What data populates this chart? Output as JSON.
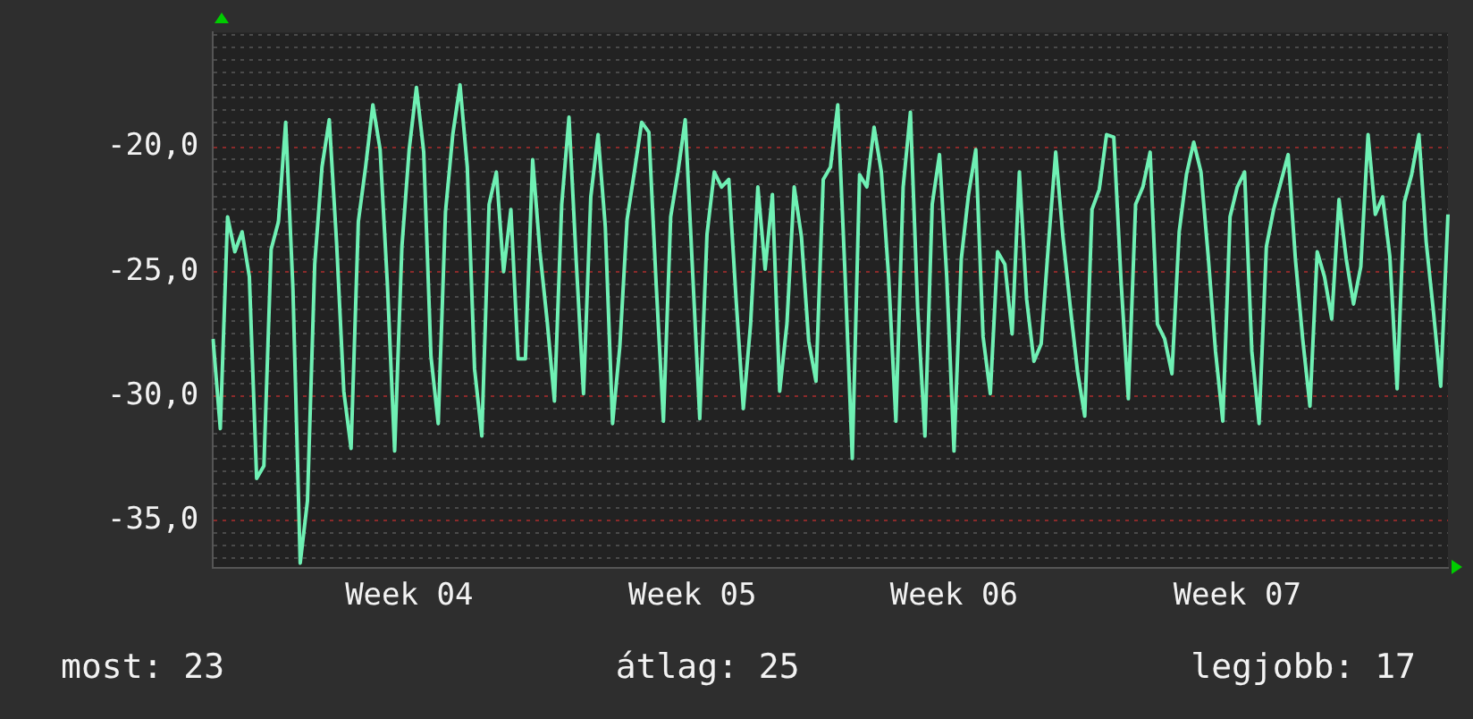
{
  "chart_data": {
    "type": "line",
    "ylim": [
      -36.9,
      -15.4
    ],
    "categories": [
      null,
      null,
      null,
      null,
      null,
      null,
      null,
      null,
      null,
      null,
      null,
      null,
      null,
      null,
      null,
      null,
      null,
      null,
      null,
      null,
      null,
      null,
      null,
      null,
      null,
      null,
      null,
      "Week 04",
      null,
      null,
      null,
      null,
      null,
      null,
      null,
      null,
      null,
      null,
      null,
      null,
      null,
      null,
      null,
      null,
      null,
      null,
      null,
      null,
      null,
      null,
      null,
      null,
      null,
      null,
      null,
      null,
      null,
      null,
      null,
      null,
      null,
      null,
      null,
      null,
      null,
      null,
      "Week 05",
      null,
      null,
      null,
      null,
      null,
      null,
      null,
      null,
      null,
      null,
      null,
      null,
      null,
      null,
      null,
      null,
      null,
      null,
      null,
      null,
      null,
      null,
      null,
      null,
      null,
      null,
      null,
      null,
      null,
      null,
      null,
      null,
      null,
      null,
      null,
      "Week 06",
      null,
      null,
      null,
      null,
      null,
      null,
      null,
      null,
      null,
      null,
      null,
      null,
      null,
      null,
      null,
      null,
      null,
      null,
      null,
      null,
      null,
      null,
      null,
      null,
      null,
      null,
      null,
      null,
      null,
      null,
      null,
      null,
      null,
      null,
      null,
      null,
      null,
      null,
      "Week 07",
      null,
      null,
      null,
      null,
      null,
      null,
      null,
      null,
      null,
      null,
      null,
      null,
      null,
      null,
      null,
      null,
      null,
      null,
      null,
      null,
      null,
      null,
      null,
      null,
      null,
      null,
      null,
      null,
      null
    ],
    "yticks": [
      {
        "value": -36.5,
        "label": null
      },
      {
        "value": -36,
        "label": null
      },
      {
        "value": -35.5,
        "label": null
      },
      {
        "value": -35,
        "label": "-35,0"
      },
      {
        "value": -34.5,
        "label": null
      },
      {
        "value": -34,
        "label": null
      },
      {
        "value": -33.5,
        "label": null
      },
      {
        "value": -33,
        "label": null
      },
      {
        "value": -32.5,
        "label": null
      },
      {
        "value": -32,
        "label": null
      },
      {
        "value": -31.5,
        "label": null
      },
      {
        "value": -31,
        "label": null
      },
      {
        "value": -30.5,
        "label": null
      },
      {
        "value": -30,
        "label": "-30,0"
      },
      {
        "value": -29.5,
        "label": null
      },
      {
        "value": -29,
        "label": null
      },
      {
        "value": -28.5,
        "label": null
      },
      {
        "value": -28,
        "label": null
      },
      {
        "value": -27.5,
        "label": null
      },
      {
        "value": -27,
        "label": null
      },
      {
        "value": -26.5,
        "label": null
      },
      {
        "value": -26,
        "label": null
      },
      {
        "value": -25.5,
        "label": null
      },
      {
        "value": -25,
        "label": "-25,0"
      },
      {
        "value": -24.5,
        "label": null
      },
      {
        "value": -24,
        "label": null
      },
      {
        "value": -23.5,
        "label": null
      },
      {
        "value": -23,
        "label": null
      },
      {
        "value": -22.5,
        "label": null
      },
      {
        "value": -22,
        "label": null
      },
      {
        "value": -21.5,
        "label": null
      },
      {
        "value": -21,
        "label": null
      },
      {
        "value": -20.5,
        "label": null
      },
      {
        "value": -20,
        "label": "-20,0"
      },
      {
        "value": -19.5,
        "label": null
      },
      {
        "value": -19,
        "label": null
      },
      {
        "value": -18.5,
        "label": null
      },
      {
        "value": -18,
        "label": null
      },
      {
        "value": -17.5,
        "label": null
      },
      {
        "value": -17,
        "label": null
      },
      {
        "value": -16.5,
        "label": null
      },
      {
        "value": -16,
        "label": null
      },
      {
        "value": -15.5,
        "label": null
      }
    ],
    "grid": "y",
    "marker": "none",
    "line_style": "solid",
    "annotations": [
      "most: 23",
      "átlag: 25",
      "legjobb: 17"
    ],
    "series": [
      {
        "color": "#6ff0b4",
        "values": [
          -27.7,
          -31.3,
          -22.8,
          -24.2,
          -23.4,
          -25.2,
          -33.3,
          -32.8,
          -24.1,
          -23.0,
          -19.0,
          -25.7,
          -36.7,
          -34.2,
          -24.7,
          -20.8,
          -18.9,
          -23.8,
          -29.8,
          -32.1,
          -23.0,
          -20.8,
          -18.3,
          -20.1,
          -25.5,
          -32.2,
          -24.0,
          -20.1,
          -17.6,
          -20.2,
          -28.4,
          -31.1,
          -22.6,
          -19.5,
          -17.5,
          -20.8,
          -28.9,
          -31.6,
          -22.3,
          -21.0,
          -25.0,
          -22.5,
          -28.5,
          -28.5,
          -20.5,
          -24.2,
          -27.0,
          -30.2,
          -22.3,
          -18.8,
          -24.6,
          -29.9,
          -22.0,
          -19.5,
          -23.2,
          -31.1,
          -28.0,
          -22.9,
          -21.0,
          -19.0,
          -19.4,
          -25.5,
          -31.0,
          -22.8,
          -21.0,
          -18.9,
          -24.9,
          -30.9,
          -23.5,
          -21.0,
          -21.6,
          -21.3,
          -26.1,
          -30.5,
          -27.1,
          -21.6,
          -24.9,
          -21.9,
          -29.8,
          -27.1,
          -21.6,
          -23.6,
          -27.8,
          -29.4,
          -21.3,
          -20.8,
          -18.3,
          -25.1,
          -32.5,
          -21.1,
          -21.6,
          -19.2,
          -21.0,
          -25.2,
          -31.0,
          -21.6,
          -18.6,
          -26.5,
          -31.6,
          -22.3,
          -20.3,
          -25.2,
          -32.2,
          -24.5,
          -21.9,
          -20.1,
          -27.6,
          -29.9,
          -24.2,
          -24.7,
          -27.5,
          -21.0,
          -26.1,
          -28.6,
          -27.9,
          -23.9,
          -20.2,
          -23.6,
          -26.4,
          -29.0,
          -30.8,
          -22.5,
          -21.7,
          -19.5,
          -19.6,
          -25.4,
          -30.1,
          -22.3,
          -21.6,
          -20.2,
          -27.1,
          -27.7,
          -29.1,
          -23.4,
          -21.1,
          -19.8,
          -21.0,
          -24.4,
          -28.2,
          -31.0,
          -22.8,
          -21.6,
          -21.0,
          -28.2,
          -31.1,
          -24.0,
          -22.5,
          -21.4,
          -20.3,
          -24.5,
          -27.7,
          -30.4,
          -24.2,
          -25.2,
          -26.9,
          -22.1,
          -24.5,
          -26.3,
          -24.8,
          -19.5,
          -22.7,
          -22.0,
          -24.4,
          -29.7,
          -22.2,
          -21.1,
          -19.5,
          -23.8,
          -26.6,
          -29.6,
          -22.7
        ]
      }
    ]
  }
}
